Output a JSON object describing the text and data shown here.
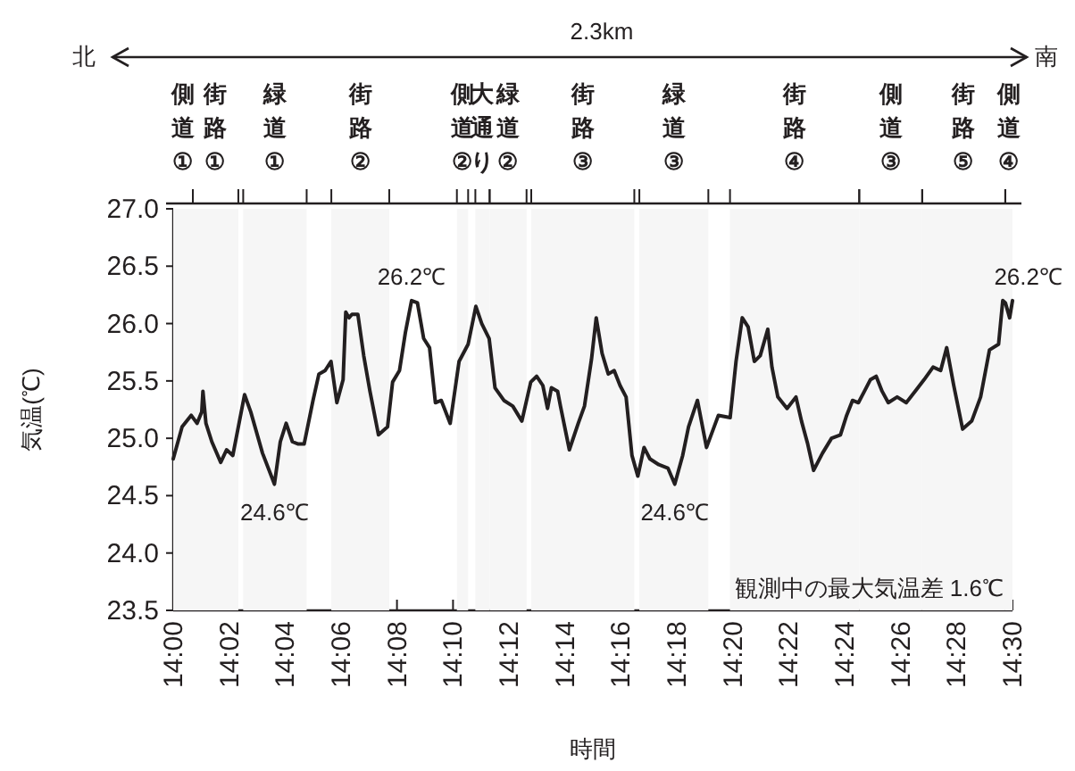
{
  "chart_data": {
    "type": "line",
    "xlabel": "時間",
    "ylabel": "気温(℃)",
    "xlim": [
      14.0,
      14.5
    ],
    "ylim": [
      23.5,
      27.0
    ],
    "xticks": [
      {
        "value": 14.0,
        "label": "14:00"
      },
      {
        "value": 14.0333,
        "label": "14:02"
      },
      {
        "value": 14.0667,
        "label": "14:04"
      },
      {
        "value": 14.1,
        "label": "14:06"
      },
      {
        "value": 14.1333,
        "label": "14:08"
      },
      {
        "value": 14.1667,
        "label": "14:10"
      },
      {
        "value": 14.2,
        "label": "14:12"
      },
      {
        "value": 14.2333,
        "label": "14:14"
      },
      {
        "value": 14.2667,
        "label": "14:16"
      },
      {
        "value": 14.3,
        "label": "14:18"
      },
      {
        "value": 14.3333,
        "label": "14:20"
      },
      {
        "value": 14.3667,
        "label": "14:22"
      },
      {
        "value": 14.4,
        "label": "14:24"
      },
      {
        "value": 14.4333,
        "label": "14:26"
      },
      {
        "value": 14.4667,
        "label": "14:28"
      },
      {
        "value": 14.5,
        "label": "14:30"
      }
    ],
    "yticks": [
      {
        "value": 23.5,
        "label": "23.5"
      },
      {
        "value": 24.0,
        "label": "24.0"
      },
      {
        "value": 24.5,
        "label": "24.5"
      },
      {
        "value": 25.0,
        "label": "25.0"
      },
      {
        "value": 25.5,
        "label": "25.5"
      },
      {
        "value": 26.0,
        "label": "26.0"
      },
      {
        "value": 26.5,
        "label": "26.5"
      },
      {
        "value": 27.0,
        "label": "27.0"
      }
    ],
    "bands": [
      {
        "axis": "x",
        "from": 14.0,
        "to": 14.0117,
        "label": "側道①",
        "color": "#f6f6f6"
      },
      {
        "axis": "x",
        "from": 14.0117,
        "to": 14.0388,
        "label": "街路①",
        "color": "#f6f6f6"
      },
      {
        "axis": "x",
        "from": 14.0417,
        "to": 14.0795,
        "label": "緑道①",
        "color": "#f6f6f6"
      },
      {
        "axis": "x",
        "from": 14.0942,
        "to": 14.1287,
        "label": "街路②",
        "color": "#f6f6f6"
      },
      {
        "axis": "x",
        "from": 14.169,
        "to": 14.1757,
        "label": "側道②",
        "color": "#f6f6f6"
      },
      {
        "axis": "x",
        "from": 14.18,
        "to": 14.1885,
        "label": "大通り",
        "color": "#f6f6f6"
      },
      {
        "axis": "x",
        "from": 14.1885,
        "to": 14.2105,
        "label": "緑道②",
        "color": "#f6f6f6"
      },
      {
        "axis": "x",
        "from": 14.2133,
        "to": 14.2747,
        "label": "街路③",
        "color": "#f6f6f6"
      },
      {
        "axis": "x",
        "from": 14.2777,
        "to": 14.3188,
        "label": "緑道③",
        "color": "#f6f6f6"
      },
      {
        "axis": "x",
        "from": 14.3317,
        "to": 14.4087,
        "label": "街路④",
        "color": "#f6f6f6"
      },
      {
        "axis": "x",
        "from": 14.4087,
        "to": 14.4462,
        "label": "側道③",
        "color": "#f6f6f6"
      },
      {
        "axis": "x",
        "from": 14.4462,
        "to": 14.4957,
        "label": "街路⑤",
        "color": "#f6f6f6"
      },
      {
        "axis": "x",
        "from": 14.4957,
        "to": 14.5,
        "label": "側道④",
        "color": "#f6f6f6"
      }
    ],
    "x": [
      14.0,
      14.0053,
      14.0107,
      14.0142,
      14.017,
      14.0177,
      14.0195,
      14.023,
      14.0283,
      14.0318,
      14.0355,
      14.0425,
      14.0462,
      14.0532,
      14.0603,
      14.0638,
      14.0673,
      14.071,
      14.0745,
      14.078,
      14.0833,
      14.0868,
      14.0905,
      14.094,
      14.0975,
      14.1012,
      14.1028,
      14.1047,
      14.1065,
      14.11,
      14.1135,
      14.1172,
      14.1223,
      14.1277,
      14.1307,
      14.1348,
      14.1383,
      14.142,
      14.1455,
      14.1492,
      14.1527,
      14.1562,
      14.1597,
      14.165,
      14.1703,
      14.1757,
      14.1803,
      14.1838,
      14.1882,
      14.1917,
      14.197,
      14.2023,
      14.2077,
      14.213,
      14.2165,
      14.2202,
      14.223,
      14.2253,
      14.229,
      14.2307,
      14.236,
      14.2413,
      14.245,
      14.2492,
      14.252,
      14.2555,
      14.2592,
      14.2627,
      14.2662,
      14.2698,
      14.2733,
      14.2768,
      14.2805,
      14.284,
      14.2893,
      14.2947,
      14.2988,
      14.3035,
      14.307,
      14.3123,
      14.3177,
      14.3248,
      14.3318,
      14.3353,
      14.339,
      14.3425,
      14.3462,
      14.3497,
      14.3542,
      14.3567,
      14.3602,
      14.3657,
      14.371,
      14.3743,
      14.378,
      14.3815,
      14.3868,
      14.3922,
      14.3975,
      14.4012,
      14.4047,
      14.4082,
      14.4118,
      14.4153,
      14.4188,
      14.4223,
      14.426,
      14.4313,
      14.4367,
      14.442,
      14.4473,
      14.4527,
      14.4572,
      14.4608,
      14.465,
      14.4703,
      14.4757,
      14.481,
      14.4863,
      14.4917,
      14.4942,
      14.4958,
      14.4983,
      14.5
    ],
    "series": [
      {
        "color": "#231f20",
        "values": [
          24.82,
          25.1,
          25.2,
          25.13,
          25.23,
          25.41,
          25.13,
          24.97,
          24.79,
          24.9,
          24.85,
          25.38,
          25.23,
          24.87,
          24.6,
          24.97,
          25.13,
          24.97,
          24.95,
          24.95,
          25.33,
          25.56,
          25.59,
          25.67,
          25.31,
          25.51,
          26.1,
          26.05,
          26.08,
          26.08,
          25.72,
          25.41,
          25.03,
          25.1,
          25.49,
          25.59,
          25.92,
          26.2,
          26.18,
          25.87,
          25.79,
          25.31,
          25.33,
          25.13,
          25.67,
          25.82,
          26.15,
          26.0,
          25.87,
          25.44,
          25.33,
          25.28,
          25.15,
          25.49,
          25.54,
          25.46,
          25.26,
          25.44,
          25.41,
          25.28,
          24.9,
          25.13,
          25.28,
          25.69,
          26.05,
          25.74,
          25.56,
          25.59,
          25.46,
          25.36,
          24.85,
          24.67,
          24.92,
          24.82,
          24.77,
          24.74,
          24.6,
          24.85,
          25.1,
          25.33,
          24.92,
          25.2,
          25.18,
          25.67,
          26.05,
          25.97,
          25.67,
          25.72,
          25.95,
          25.62,
          25.36,
          25.26,
          25.36,
          25.15,
          24.95,
          24.72,
          24.87,
          25.0,
          25.03,
          25.2,
          25.33,
          25.31,
          25.41,
          25.51,
          25.54,
          25.41,
          25.31,
          25.36,
          25.31,
          25.41,
          25.51,
          25.62,
          25.59,
          25.79,
          25.46,
          25.08,
          25.15,
          25.36,
          25.77,
          25.82,
          26.2,
          26.18,
          26.05,
          26.2
        ]
      }
    ],
    "annotations": [
      "北",
      "南",
      "2.3km",
      "観測中の最大気温差  1.6℃",
      {
        "text": "24.6℃",
        "x": 14.0603,
        "y": 24.6
      },
      {
        "text": "26.2℃",
        "x": 14.142,
        "y": 26.2
      },
      {
        "text": "24.6℃",
        "x": 14.2988,
        "y": 24.6
      },
      {
        "text": "26.2℃",
        "x": 14.5,
        "y": 26.2
      }
    ]
  }
}
